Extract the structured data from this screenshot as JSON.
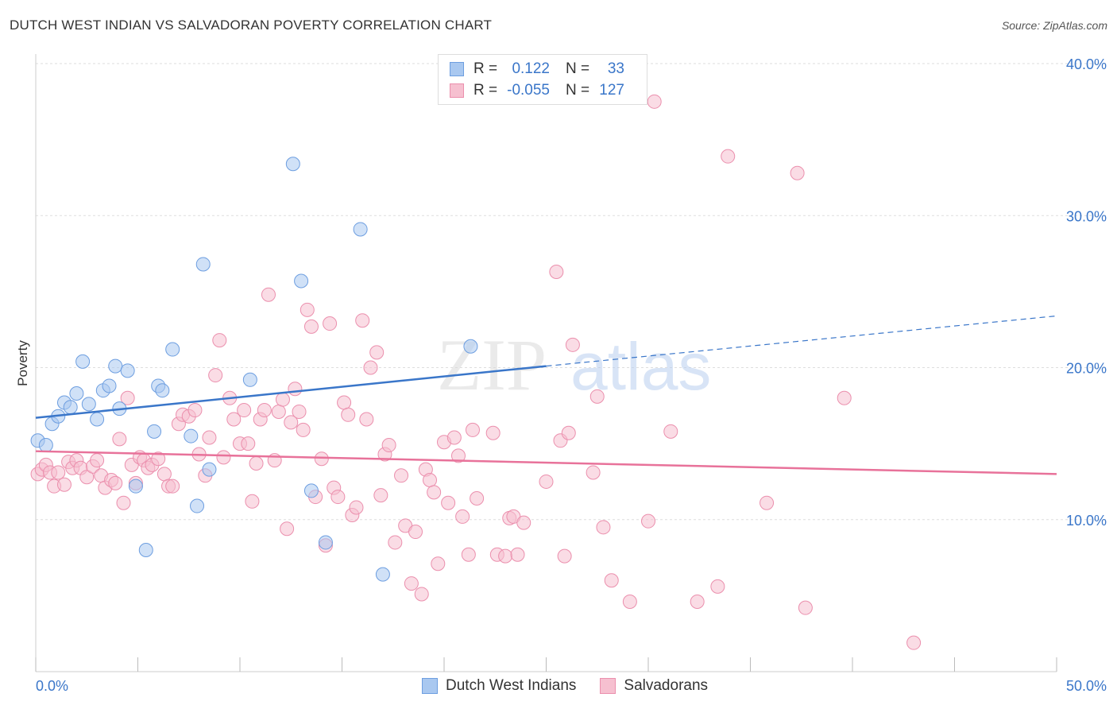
{
  "title": "DUTCH WEST INDIAN VS SALVADORAN POVERTY CORRELATION CHART",
  "source": "Source: ZipAtlas.com",
  "watermark": {
    "zip": "ZIP",
    "atlas": "atlas"
  },
  "legend": {
    "rows": [
      {
        "r_label": "R =",
        "r_value": "0.122",
        "n_label": "N =",
        "n_value": "33"
      },
      {
        "r_label": "R =",
        "r_value": "-0.055",
        "n_label": "N =",
        "n_value": "127"
      }
    ]
  },
  "colors": {
    "blue_fill": "#a9c8f0",
    "blue_stroke": "#6d9ee0",
    "blue_line": "#3a76c9",
    "pink_fill": "#f6c0d0",
    "pink_stroke": "#eb8fad",
    "pink_line": "#e8729a",
    "axis_text": "#3a76c9",
    "grid": "#dddddd"
  },
  "chart_data": {
    "type": "scatter",
    "title": "DUTCH WEST INDIAN VS SALVADORAN POVERTY CORRELATION CHART",
    "xlabel": "",
    "ylabel": "Poverty",
    "xlim": [
      0,
      50
    ],
    "ylim": [
      0,
      40
    ],
    "x_tick_labels": [
      "0.0%",
      "50.0%"
    ],
    "y_ticks": [
      10,
      20,
      30,
      40
    ],
    "y_tick_labels": [
      "10.0%",
      "20.0%",
      "30.0%",
      "40.0%"
    ],
    "grid": true,
    "legend_position": "bottom-center",
    "series": [
      {
        "name": "Dutch West Indians",
        "color": "#a9c8f0",
        "trend": {
          "x0": 0,
          "y0": 16.7,
          "x1": 25,
          "y1": 20.1,
          "x_dashed_end": 50,
          "y_dashed_end": 23.4
        },
        "points": [
          [
            0.1,
            15.2
          ],
          [
            0.5,
            14.9
          ],
          [
            0.8,
            16.3
          ],
          [
            1.1,
            16.8
          ],
          [
            1.4,
            17.7
          ],
          [
            1.7,
            17.4
          ],
          [
            2.0,
            18.3
          ],
          [
            2.3,
            20.4
          ],
          [
            2.6,
            17.6
          ],
          [
            3.0,
            16.6
          ],
          [
            3.3,
            18.5
          ],
          [
            3.6,
            18.8
          ],
          [
            3.9,
            20.1
          ],
          [
            4.1,
            17.3
          ],
          [
            4.5,
            19.8
          ],
          [
            4.9,
            12.2
          ],
          [
            5.4,
            8.0
          ],
          [
            5.8,
            15.8
          ],
          [
            6.0,
            18.8
          ],
          [
            6.2,
            18.5
          ],
          [
            6.7,
            21.2
          ],
          [
            7.6,
            15.5
          ],
          [
            7.9,
            10.9
          ],
          [
            8.2,
            26.8
          ],
          [
            8.5,
            13.3
          ],
          [
            10.5,
            19.2
          ],
          [
            12.6,
            33.4
          ],
          [
            13.0,
            25.7
          ],
          [
            13.5,
            11.9
          ],
          [
            14.2,
            8.5
          ],
          [
            15.9,
            29.1
          ],
          [
            17.0,
            6.4
          ],
          [
            21.3,
            21.4
          ]
        ]
      },
      {
        "name": "Salvadorans",
        "color": "#f6c0d0",
        "trend": {
          "x0": 0,
          "y0": 14.5,
          "x1": 50,
          "y1": 13.0
        },
        "points": [
          [
            0.1,
            13.0
          ],
          [
            0.3,
            13.3
          ],
          [
            0.5,
            13.6
          ],
          [
            0.7,
            13.1
          ],
          [
            0.9,
            12.2
          ],
          [
            1.1,
            13.1
          ],
          [
            1.4,
            12.3
          ],
          [
            1.6,
            13.8
          ],
          [
            1.8,
            13.4
          ],
          [
            2.0,
            13.9
          ],
          [
            2.2,
            13.4
          ],
          [
            2.5,
            12.8
          ],
          [
            2.8,
            13.5
          ],
          [
            3.0,
            13.9
          ],
          [
            3.2,
            12.9
          ],
          [
            3.4,
            12.1
          ],
          [
            3.7,
            12.6
          ],
          [
            3.9,
            12.4
          ],
          [
            4.1,
            15.3
          ],
          [
            4.3,
            11.1
          ],
          [
            4.5,
            18.0
          ],
          [
            4.7,
            13.6
          ],
          [
            4.9,
            12.4
          ],
          [
            5.1,
            14.1
          ],
          [
            5.3,
            13.9
          ],
          [
            5.5,
            13.4
          ],
          [
            5.7,
            13.6
          ],
          [
            6.0,
            14.0
          ],
          [
            6.3,
            13.0
          ],
          [
            6.5,
            12.2
          ],
          [
            6.7,
            12.2
          ],
          [
            7.0,
            16.3
          ],
          [
            7.2,
            16.9
          ],
          [
            7.5,
            16.8
          ],
          [
            7.8,
            17.2
          ],
          [
            8.0,
            14.3
          ],
          [
            8.3,
            12.9
          ],
          [
            8.5,
            15.4
          ],
          [
            8.8,
            19.5
          ],
          [
            9.0,
            21.8
          ],
          [
            9.2,
            14.1
          ],
          [
            9.5,
            18.0
          ],
          [
            9.7,
            16.6
          ],
          [
            10.0,
            15.0
          ],
          [
            10.2,
            17.2
          ],
          [
            10.4,
            15.0
          ],
          [
            10.6,
            11.2
          ],
          [
            10.8,
            13.7
          ],
          [
            11.0,
            16.6
          ],
          [
            11.2,
            17.2
          ],
          [
            11.4,
            24.8
          ],
          [
            11.7,
            13.9
          ],
          [
            11.9,
            17.1
          ],
          [
            12.1,
            17.9
          ],
          [
            12.3,
            9.4
          ],
          [
            12.5,
            16.4
          ],
          [
            12.7,
            18.6
          ],
          [
            12.9,
            17.1
          ],
          [
            13.1,
            15.9
          ],
          [
            13.3,
            23.8
          ],
          [
            13.5,
            22.7
          ],
          [
            13.7,
            11.5
          ],
          [
            14.0,
            14.0
          ],
          [
            14.2,
            8.3
          ],
          [
            14.4,
            22.9
          ],
          [
            14.6,
            12.1
          ],
          [
            14.8,
            11.5
          ],
          [
            15.1,
            17.7
          ],
          [
            15.3,
            16.9
          ],
          [
            15.5,
            10.3
          ],
          [
            15.7,
            10.8
          ],
          [
            16.0,
            23.1
          ],
          [
            16.2,
            16.6
          ],
          [
            16.4,
            20.0
          ],
          [
            16.7,
            21.0
          ],
          [
            16.9,
            11.6
          ],
          [
            17.1,
            14.3
          ],
          [
            17.3,
            14.9
          ],
          [
            17.6,
            8.5
          ],
          [
            17.9,
            12.9
          ],
          [
            18.1,
            9.6
          ],
          [
            18.4,
            5.8
          ],
          [
            18.6,
            9.2
          ],
          [
            18.9,
            5.1
          ],
          [
            19.1,
            13.3
          ],
          [
            19.3,
            12.6
          ],
          [
            19.5,
            11.8
          ],
          [
            19.7,
            7.1
          ],
          [
            20.0,
            15.1
          ],
          [
            20.2,
            11.1
          ],
          [
            20.5,
            15.4
          ],
          [
            20.7,
            14.2
          ],
          [
            20.9,
            10.2
          ],
          [
            21.2,
            7.7
          ],
          [
            21.4,
            15.9
          ],
          [
            21.6,
            11.4
          ],
          [
            22.4,
            15.7
          ],
          [
            22.6,
            7.7
          ],
          [
            23.0,
            7.6
          ],
          [
            23.2,
            10.1
          ],
          [
            23.4,
            10.2
          ],
          [
            23.6,
            7.7
          ],
          [
            23.9,
            9.8
          ],
          [
            25.0,
            12.5
          ],
          [
            25.5,
            26.3
          ],
          [
            25.7,
            15.2
          ],
          [
            25.9,
            7.6
          ],
          [
            26.1,
            15.7
          ],
          [
            26.3,
            21.5
          ],
          [
            27.3,
            13.1
          ],
          [
            27.5,
            18.1
          ],
          [
            27.8,
            9.5
          ],
          [
            28.2,
            6.0
          ],
          [
            29.1,
            4.6
          ],
          [
            30.0,
            9.9
          ],
          [
            30.3,
            37.5
          ],
          [
            31.1,
            15.8
          ],
          [
            32.4,
            4.6
          ],
          [
            33.4,
            5.6
          ],
          [
            33.9,
            33.9
          ],
          [
            35.8,
            11.1
          ],
          [
            37.3,
            32.8
          ],
          [
            37.7,
            4.2
          ],
          [
            39.6,
            18.0
          ],
          [
            43.0,
            1.9
          ]
        ]
      }
    ]
  }
}
